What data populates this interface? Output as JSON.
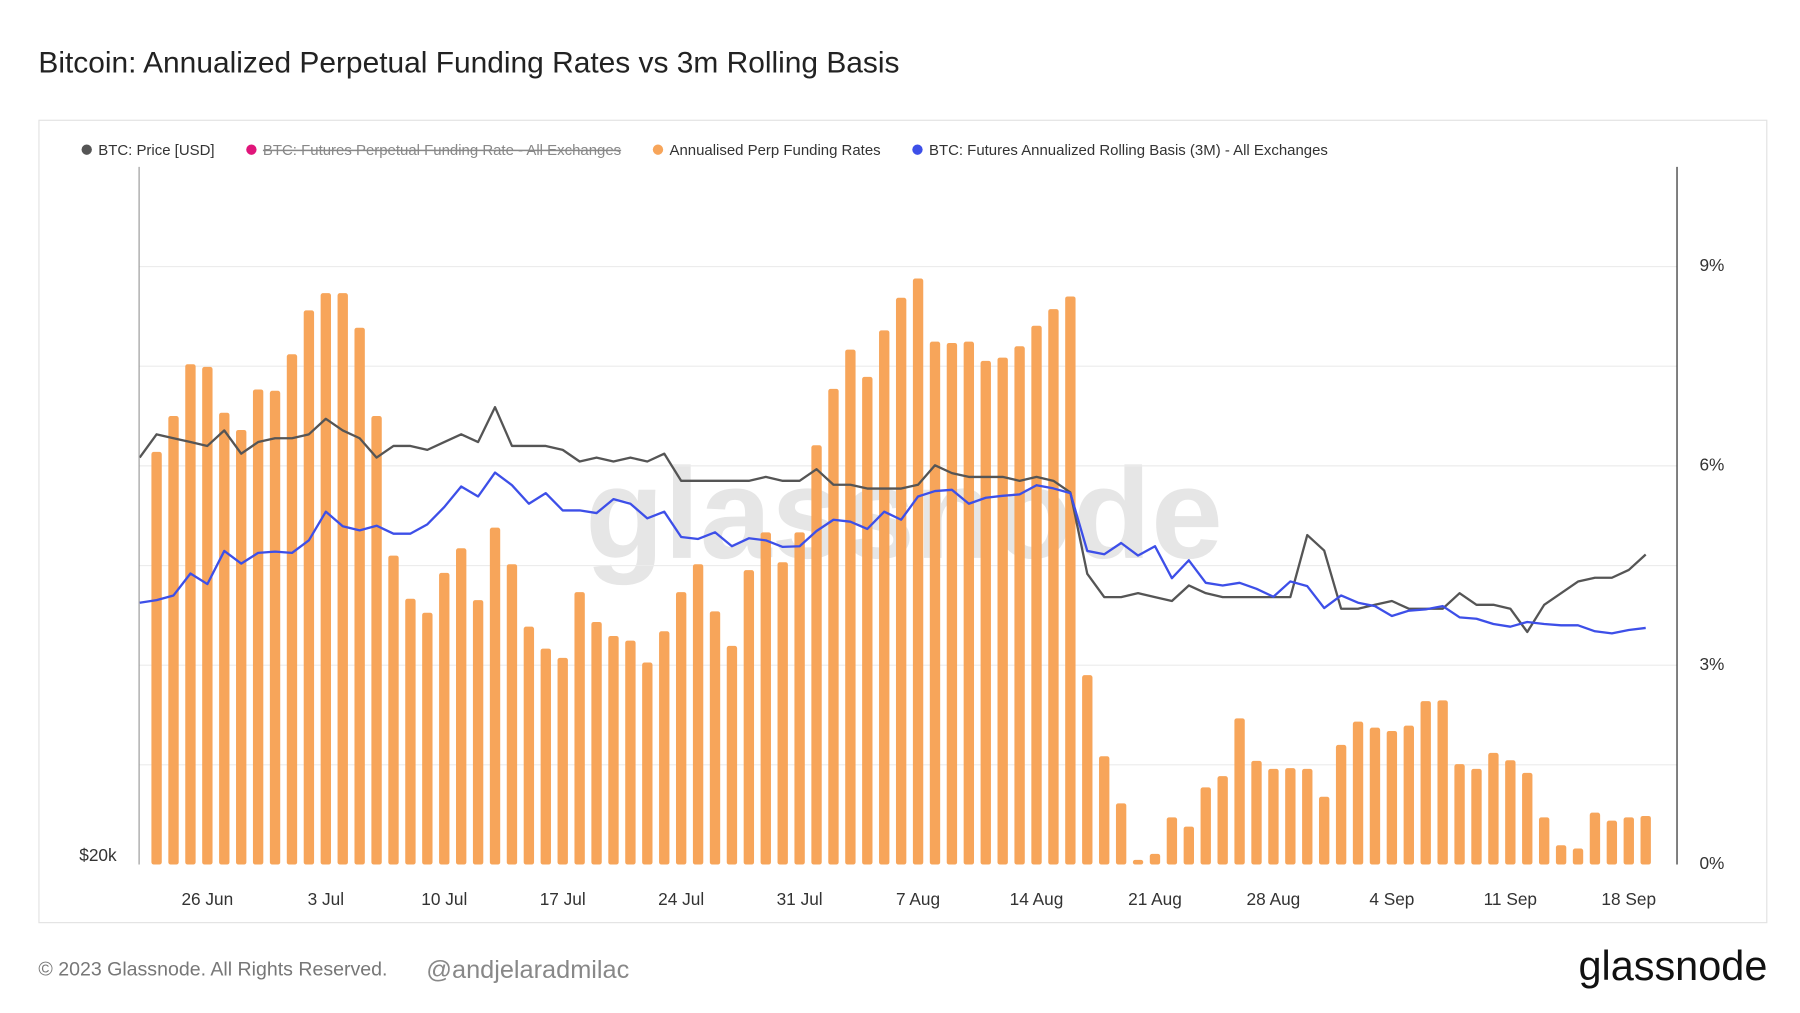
{
  "chart_data": {
    "type": "bar",
    "title": "Bitcoin: Annualized Perpetual Funding Rates vs 3m Rolling Basis",
    "watermark": "glassnode",
    "footer": "© 2023 Glassnode. All Rights Reserved.",
    "handle": "@andjelaradmilac",
    "logo": "glassnode",
    "grid": true,
    "legend": "top-left",
    "categories": [
      null,
      null,
      null,
      null,
      "26 Jun",
      null,
      null,
      null,
      null,
      null,
      null,
      "3 Jul",
      null,
      null,
      null,
      null,
      null,
      null,
      "10 Jul",
      null,
      null,
      null,
      null,
      null,
      null,
      "17 Jul",
      null,
      null,
      null,
      null,
      null,
      null,
      "24 Jul",
      null,
      null,
      null,
      null,
      null,
      null,
      "31 Jul",
      null,
      null,
      null,
      null,
      null,
      null,
      "7 Aug",
      null,
      null,
      null,
      null,
      null,
      null,
      "14 Aug",
      null,
      null,
      null,
      null,
      null,
      null,
      "21 Aug",
      null,
      null,
      null,
      null,
      null,
      null,
      "28 Aug",
      null,
      null,
      null,
      null,
      null,
      null,
      "4 Sep",
      null,
      null,
      null,
      null,
      null,
      null,
      "11 Sep",
      null,
      null,
      null,
      null,
      null,
      null,
      "18 Sep",
      null
    ],
    "ylim": [
      20000,
      38000
    ],
    "yticks": [
      {
        "value": 20000,
        "label": "$20k"
      }
    ],
    "y2lim": [
      0,
      10.5
    ],
    "y2ticks": [
      {
        "value": 0,
        "label": "0%"
      },
      {
        "value": 3,
        "label": "3%"
      },
      {
        "value": 6,
        "label": "6%"
      },
      {
        "value": 9,
        "label": "9%"
      }
    ],
    "y2grid": [
      1.5,
      4.5,
      7.5
    ],
    "series": [
      {
        "name": "BTC: Price [USD]",
        "type": "line",
        "color": "#555555",
        "axis": "y",
        "values": [
          30500,
          31100,
          31000,
          30900,
          30800,
          31200,
          30600,
          30900,
          31000,
          31000,
          31100,
          31500,
          31200,
          31000,
          30500,
          30800,
          30800,
          30700,
          30900,
          31100,
          30900,
          31800,
          30800,
          30800,
          30800,
          30700,
          30400,
          30500,
          30400,
          30500,
          30400,
          30600,
          29900,
          29900,
          29900,
          29900,
          29900,
          30000,
          29900,
          29900,
          30200,
          29800,
          29800,
          29700,
          29700,
          29700,
          29800,
          30300,
          30100,
          30000,
          30000,
          30000,
          29900,
          30000,
          29900,
          29600,
          27500,
          26900,
          26900,
          27000,
          26900,
          26800,
          27200,
          27000,
          26900,
          26900,
          26900,
          26900,
          26900,
          28500,
          28100,
          26600,
          26600,
          26700,
          26800,
          26600,
          26600,
          26600,
          27000,
          26700,
          26700,
          26600,
          26000,
          26700,
          27000,
          27300,
          27400,
          27400,
          27600,
          28000
        ]
      },
      {
        "name": "BTC: Futures Perpetual Funding Rate - All Exchanges",
        "type": "line",
        "color": "#e0157a",
        "axis": "y2",
        "hidden": true
      },
      {
        "name": "Annualised Perp Funding Rates",
        "type": "bar",
        "color": "#f7a55a",
        "axis": "y2",
        "values": [
          null,
          6.21,
          6.75,
          7.53,
          7.49,
          6.8,
          6.54,
          7.15,
          7.13,
          7.68,
          8.34,
          8.6,
          8.6,
          8.08,
          6.75,
          4.65,
          4.0,
          3.79,
          4.39,
          4.76,
          3.98,
          5.07,
          4.52,
          3.58,
          3.25,
          3.11,
          4.1,
          3.65,
          3.44,
          3.37,
          3.04,
          3.51,
          4.1,
          4.52,
          3.81,
          3.29,
          4.43,
          5.0,
          4.55,
          5.0,
          6.31,
          7.16,
          7.75,
          7.34,
          8.04,
          8.53,
          8.82,
          7.87,
          7.85,
          7.87,
          7.58,
          7.63,
          7.8,
          8.11,
          8.36,
          8.55,
          2.85,
          1.63,
          0.92,
          0.07,
          0.16,
          0.71,
          0.57,
          1.16,
          1.33,
          2.2,
          1.56,
          1.44,
          1.45,
          1.44,
          1.02,
          1.8,
          2.15,
          2.06,
          2.01,
          2.09,
          2.46,
          2.47,
          1.51,
          1.44,
          1.68,
          1.57,
          1.38,
          0.71,
          0.29,
          0.24,
          0.78,
          0.66,
          0.71,
          0.73
        ]
      },
      {
        "name": "BTC: Futures Annualized Rolling Basis (3M) - All Exchanges",
        "type": "line",
        "color": "#3d4fe8",
        "axis": "y2",
        "values": [
          3.94,
          3.98,
          4.05,
          4.38,
          4.22,
          4.72,
          4.53,
          4.69,
          4.71,
          4.69,
          4.88,
          5.31,
          5.09,
          5.03,
          5.1,
          4.98,
          4.98,
          5.12,
          5.38,
          5.69,
          5.54,
          5.9,
          5.71,
          5.43,
          5.59,
          5.33,
          5.33,
          5.29,
          5.5,
          5.43,
          5.21,
          5.31,
          4.93,
          4.9,
          5.0,
          4.79,
          4.91,
          4.88,
          4.78,
          4.79,
          5.02,
          5.19,
          5.16,
          5.05,
          5.31,
          5.19,
          5.54,
          5.62,
          5.64,
          5.43,
          5.52,
          5.55,
          5.57,
          5.71,
          5.66,
          5.59,
          4.72,
          4.67,
          4.84,
          4.65,
          4.79,
          4.31,
          4.58,
          4.24,
          4.2,
          4.24,
          4.15,
          4.03,
          4.26,
          4.19,
          3.86,
          4.05,
          3.94,
          3.89,
          3.74,
          3.82,
          3.84,
          3.89,
          3.72,
          3.7,
          3.62,
          3.58,
          3.65,
          3.62,
          3.6,
          3.6,
          3.51,
          3.48,
          3.53,
          3.56
        ]
      }
    ]
  }
}
